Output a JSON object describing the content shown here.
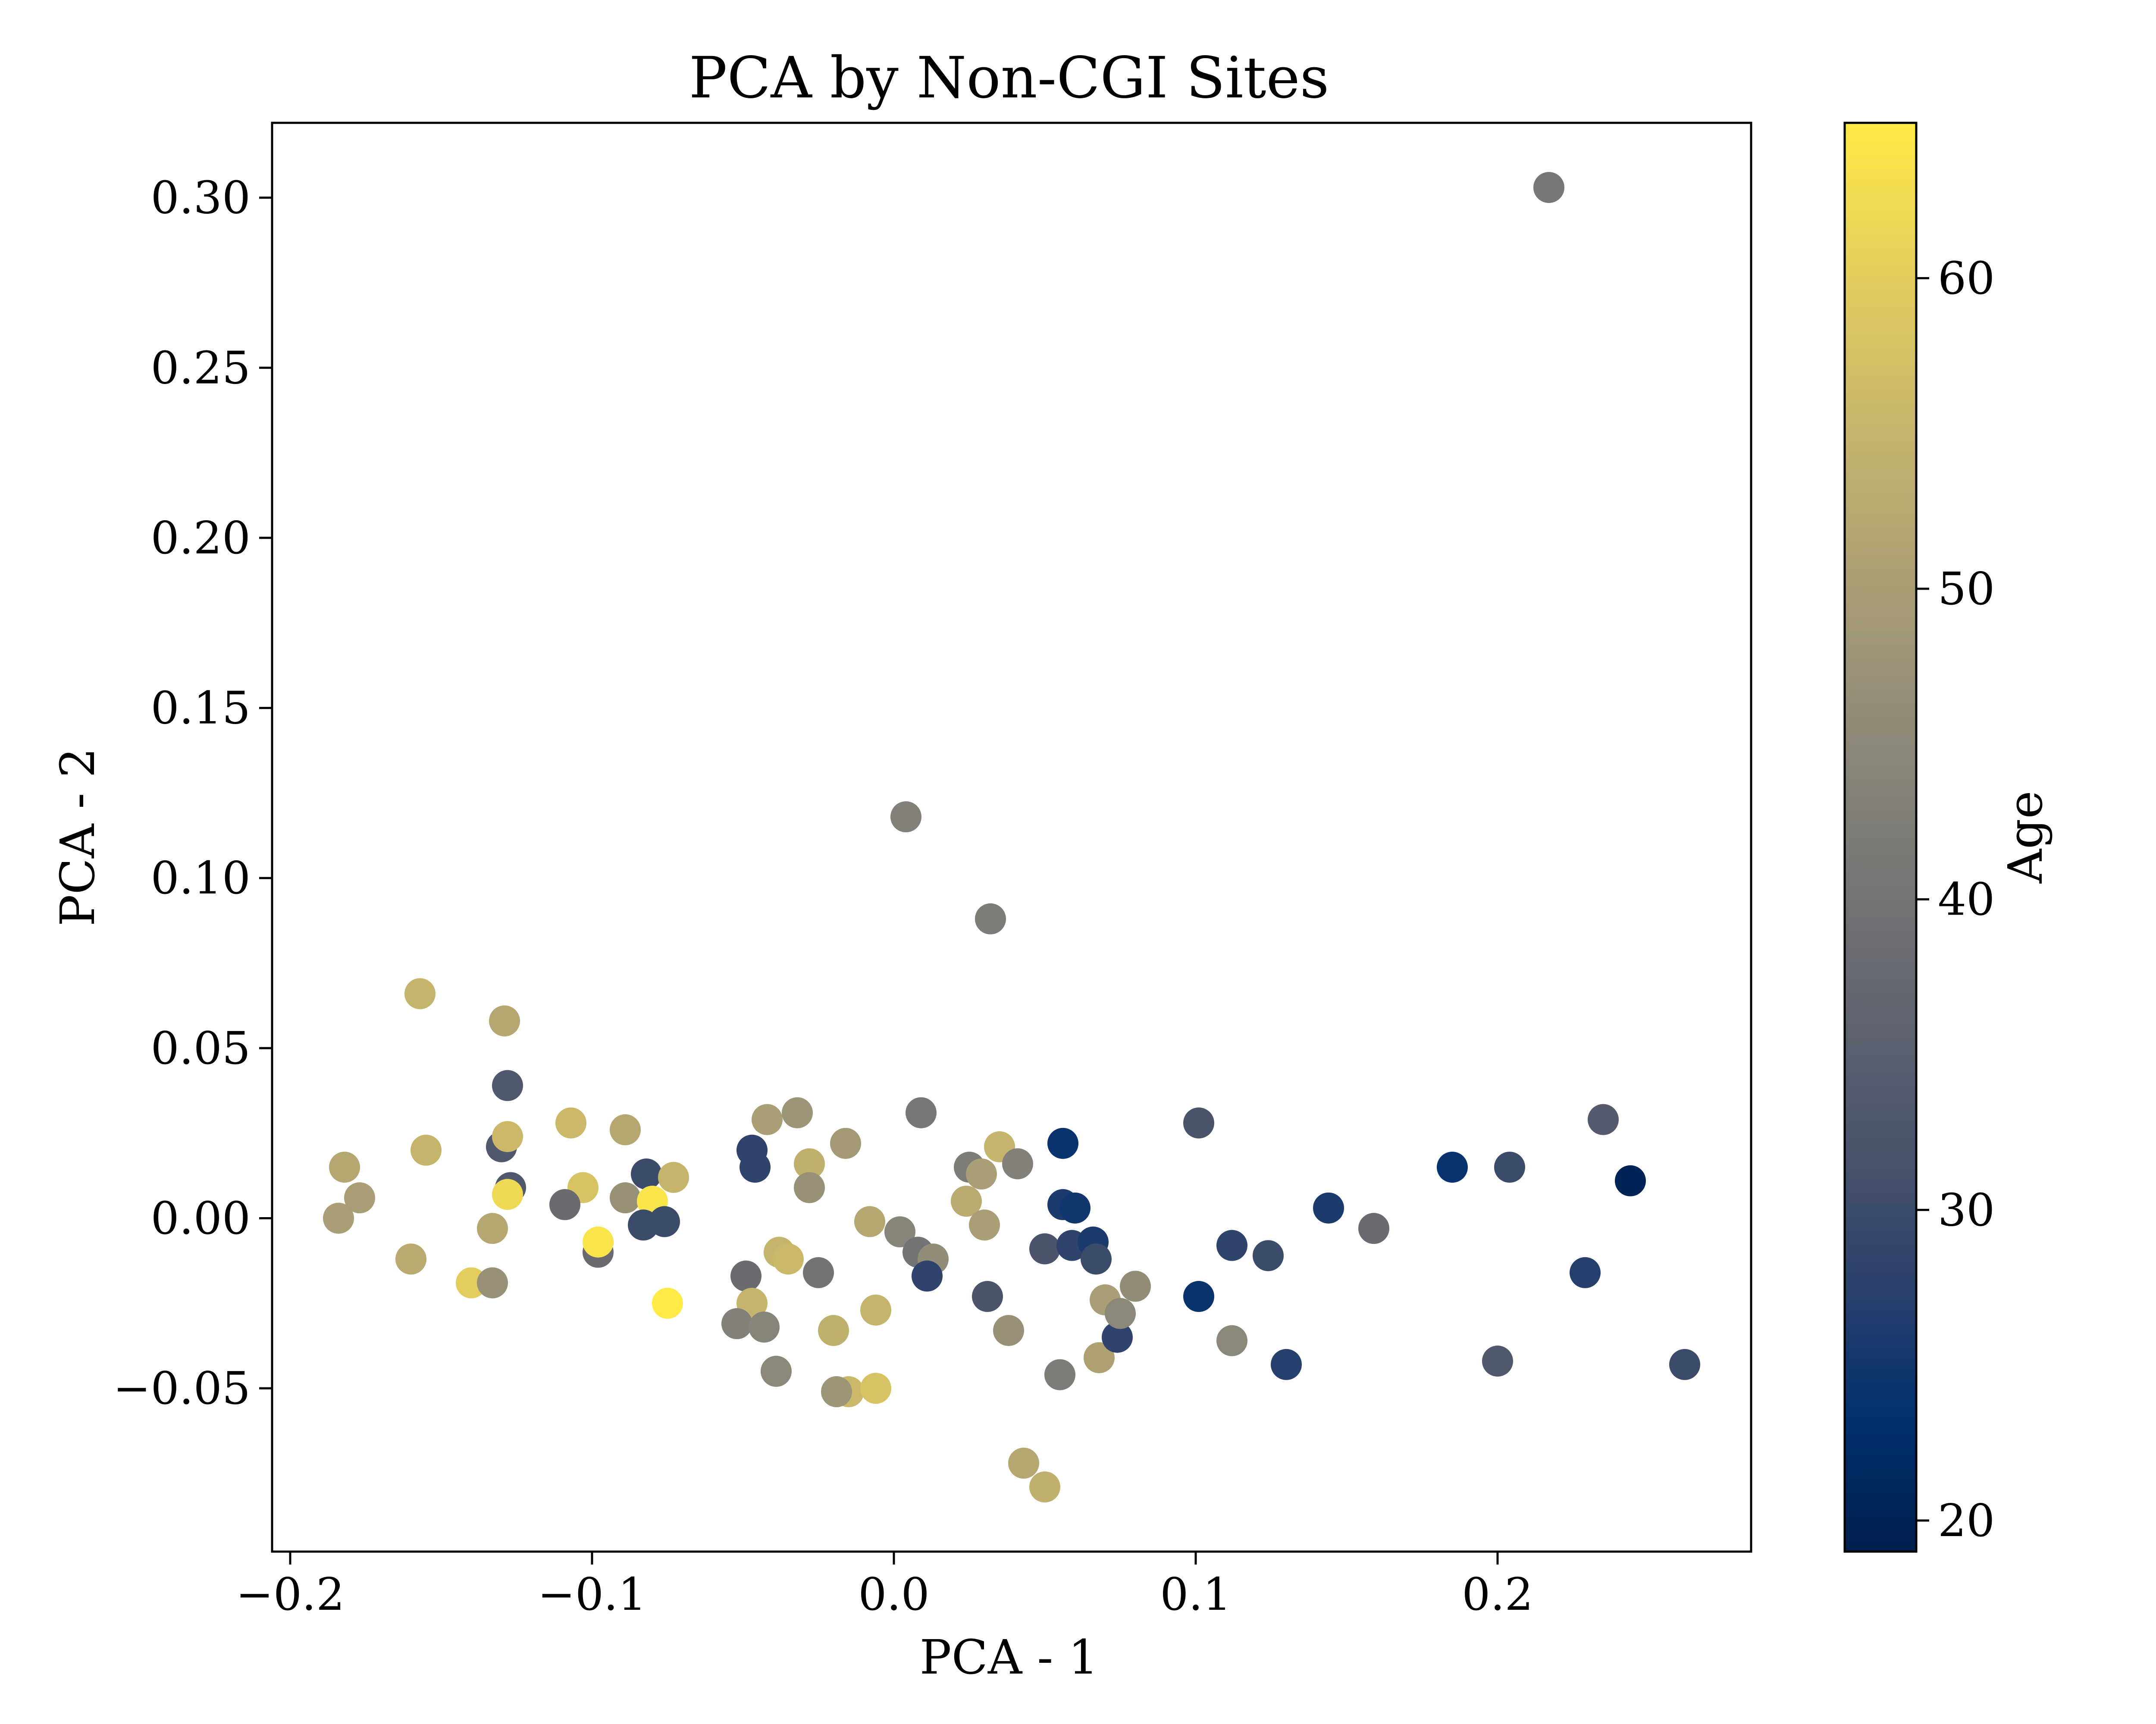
{
  "chart_data": {
    "type": "scatter",
    "title": "PCA by Non-CGI Sites",
    "xlabel": "PCA - 1",
    "ylabel": "PCA - 2",
    "xlim": [
      -0.206,
      0.284
    ],
    "ylim": [
      -0.098,
      0.322
    ],
    "xticks": [
      -0.2,
      -0.1,
      0.0,
      0.1,
      0.2
    ],
    "xtick_labels": [
      "−0.2",
      "−0.1",
      "0.0",
      "0.1",
      "0.2"
    ],
    "yticks": [
      -0.05,
      0.0,
      0.05,
      0.1,
      0.15,
      0.2,
      0.25,
      0.3
    ],
    "ytick_labels": [
      "−0.05",
      "0.00",
      "0.05",
      "0.10",
      "0.15",
      "0.20",
      "0.25",
      "0.30"
    ],
    "grid": false,
    "colorbar": {
      "label": "Age",
      "range": [
        19,
        65
      ],
      "ticks": [
        20,
        30,
        40,
        50,
        60
      ],
      "tick_labels": [
        "20",
        "30",
        "40",
        "50",
        "60"
      ],
      "colormap": "cividis",
      "colors": [
        "#00204d",
        "#00306f",
        "#2a406c",
        "#48526b",
        "#5e626e",
        "#727374",
        "#878479",
        "#9f9677",
        "#b6a971",
        "#cfbc68",
        "#e8d15a",
        "#ffea46"
      ]
    },
    "points": [
      {
        "x": 0.217,
        "y": 0.303,
        "age": 41
      },
      {
        "x": 0.004,
        "y": 0.118,
        "age": 43
      },
      {
        "x": 0.032,
        "y": 0.088,
        "age": 42
      },
      {
        "x": -0.157,
        "y": 0.066,
        "age": 55
      },
      {
        "x": -0.129,
        "y": 0.058,
        "age": 52
      },
      {
        "x": -0.128,
        "y": 0.039,
        "age": 33
      },
      {
        "x": -0.13,
        "y": 0.021,
        "age": 33
      },
      {
        "x": -0.128,
        "y": 0.024,
        "age": 56
      },
      {
        "x": -0.155,
        "y": 0.02,
        "age": 55
      },
      {
        "x": -0.182,
        "y": 0.015,
        "age": 52
      },
      {
        "x": -0.177,
        "y": 0.006,
        "age": 50
      },
      {
        "x": -0.184,
        "y": 0.0,
        "age": 50
      },
      {
        "x": -0.16,
        "y": -0.012,
        "age": 53
      },
      {
        "x": -0.127,
        "y": 0.009,
        "age": 33
      },
      {
        "x": -0.128,
        "y": 0.007,
        "age": 62
      },
      {
        "x": -0.133,
        "y": -0.003,
        "age": 52
      },
      {
        "x": -0.14,
        "y": -0.019,
        "age": 60
      },
      {
        "x": -0.133,
        "y": -0.019,
        "age": 47
      },
      {
        "x": -0.107,
        "y": 0.028,
        "age": 56
      },
      {
        "x": -0.103,
        "y": 0.009,
        "age": 58
      },
      {
        "x": -0.109,
        "y": 0.004,
        "age": 38
      },
      {
        "x": -0.098,
        "y": -0.01,
        "age": 38
      },
      {
        "x": -0.098,
        "y": -0.007,
        "age": 64
      },
      {
        "x": -0.089,
        "y": 0.026,
        "age": 52
      },
      {
        "x": -0.089,
        "y": 0.006,
        "age": 47
      },
      {
        "x": -0.082,
        "y": 0.013,
        "age": 30
      },
      {
        "x": -0.08,
        "y": 0.005,
        "age": 64
      },
      {
        "x": -0.083,
        "y": -0.002,
        "age": 30
      },
      {
        "x": -0.076,
        "y": -0.001,
        "age": 30
      },
      {
        "x": -0.073,
        "y": 0.012,
        "age": 55
      },
      {
        "x": -0.075,
        "y": -0.025,
        "age": 65
      },
      {
        "x": -0.047,
        "y": 0.02,
        "age": 28
      },
      {
        "x": -0.046,
        "y": 0.015,
        "age": 28
      },
      {
        "x": -0.042,
        "y": 0.029,
        "age": 50
      },
      {
        "x": -0.032,
        "y": 0.031,
        "age": 48
      },
      {
        "x": -0.028,
        "y": 0.016,
        "age": 54
      },
      {
        "x": -0.028,
        "y": 0.009,
        "age": 47
      },
      {
        "x": -0.016,
        "y": 0.022,
        "age": 49
      },
      {
        "x": -0.049,
        "y": -0.017,
        "age": 38
      },
      {
        "x": -0.047,
        "y": -0.025,
        "age": 55
      },
      {
        "x": -0.052,
        "y": -0.031,
        "age": 43
      },
      {
        "x": -0.043,
        "y": -0.032,
        "age": 44
      },
      {
        "x": -0.038,
        "y": -0.01,
        "age": 55
      },
      {
        "x": -0.035,
        "y": -0.012,
        "age": 56
      },
      {
        "x": -0.025,
        "y": -0.016,
        "age": 40
      },
      {
        "x": -0.039,
        "y": -0.045,
        "age": 45
      },
      {
        "x": -0.02,
        "y": -0.033,
        "age": 54
      },
      {
        "x": -0.015,
        "y": -0.051,
        "age": 56
      },
      {
        "x": -0.019,
        "y": -0.051,
        "age": 48
      },
      {
        "x": -0.008,
        "y": -0.001,
        "age": 52
      },
      {
        "x": -0.006,
        "y": -0.027,
        "age": 55
      },
      {
        "x": -0.006,
        "y": -0.05,
        "age": 58
      },
      {
        "x": 0.002,
        "y": -0.004,
        "age": 44
      },
      {
        "x": 0.008,
        "y": -0.01,
        "age": 40
      },
      {
        "x": 0.013,
        "y": -0.012,
        "age": 46
      },
      {
        "x": 0.011,
        "y": -0.017,
        "age": 28
      },
      {
        "x": 0.009,
        "y": 0.031,
        "age": 41
      },
      {
        "x": 0.025,
        "y": 0.015,
        "age": 42
      },
      {
        "x": 0.029,
        "y": 0.013,
        "age": 50
      },
      {
        "x": 0.024,
        "y": 0.005,
        "age": 53
      },
      {
        "x": 0.03,
        "y": -0.002,
        "age": 50
      },
      {
        "x": 0.035,
        "y": 0.021,
        "age": 55
      },
      {
        "x": 0.041,
        "y": 0.016,
        "age": 43
      },
      {
        "x": 0.031,
        "y": -0.023,
        "age": 32
      },
      {
        "x": 0.038,
        "y": -0.033,
        "age": 47
      },
      {
        "x": 0.043,
        "y": -0.072,
        "age": 52
      },
      {
        "x": 0.05,
        "y": -0.079,
        "age": 54
      },
      {
        "x": 0.05,
        "y": -0.009,
        "age": 32
      },
      {
        "x": 0.056,
        "y": 0.022,
        "age": 24
      },
      {
        "x": 0.056,
        "y": 0.004,
        "age": 26
      },
      {
        "x": 0.06,
        "y": 0.003,
        "age": 25
      },
      {
        "x": 0.059,
        "y": -0.008,
        "age": 28
      },
      {
        "x": 0.066,
        "y": -0.007,
        "age": 26
      },
      {
        "x": 0.067,
        "y": -0.012,
        "age": 30
      },
      {
        "x": 0.055,
        "y": -0.046,
        "age": 42
      },
      {
        "x": 0.07,
        "y": -0.024,
        "age": 50
      },
      {
        "x": 0.068,
        "y": -0.041,
        "age": 51
      },
      {
        "x": 0.074,
        "y": -0.035,
        "age": 28
      },
      {
        "x": 0.075,
        "y": -0.028,
        "age": 45
      },
      {
        "x": 0.08,
        "y": -0.02,
        "age": 46
      },
      {
        "x": 0.101,
        "y": 0.028,
        "age": 32
      },
      {
        "x": 0.101,
        "y": -0.023,
        "age": 24
      },
      {
        "x": 0.112,
        "y": -0.008,
        "age": 28
      },
      {
        "x": 0.112,
        "y": -0.036,
        "age": 45
      },
      {
        "x": 0.124,
        "y": -0.011,
        "age": 30
      },
      {
        "x": 0.13,
        "y": -0.043,
        "age": 27
      },
      {
        "x": 0.144,
        "y": 0.003,
        "age": 26
      },
      {
        "x": 0.159,
        "y": -0.003,
        "age": 38
      },
      {
        "x": 0.185,
        "y": 0.015,
        "age": 24
      },
      {
        "x": 0.204,
        "y": 0.015,
        "age": 30
      },
      {
        "x": 0.2,
        "y": -0.042,
        "age": 33
      },
      {
        "x": 0.229,
        "y": -0.016,
        "age": 27
      },
      {
        "x": 0.235,
        "y": 0.029,
        "age": 34
      },
      {
        "x": 0.244,
        "y": 0.011,
        "age": 20
      },
      {
        "x": 0.262,
        "y": -0.043,
        "age": 30
      }
    ]
  }
}
